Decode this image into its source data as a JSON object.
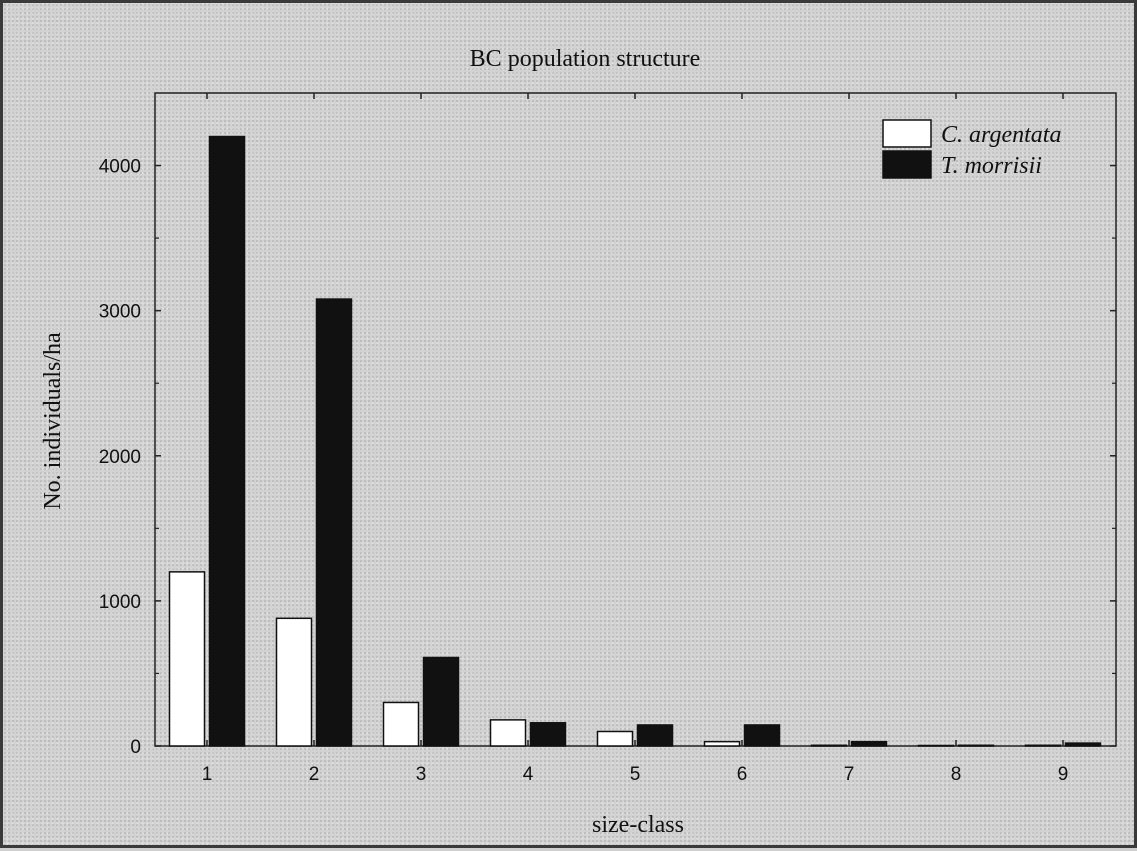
{
  "chart_data": {
    "type": "bar",
    "title": "BC population structure",
    "xlabel": "size-class",
    "ylabel": "No. individuals/ha",
    "categories": [
      "1",
      "2",
      "3",
      "4",
      "5",
      "6",
      "7",
      "8",
      "9"
    ],
    "series": [
      {
        "name": "C. argentata",
        "color": "#ffffff",
        "values": [
          1200,
          880,
          300,
          180,
          100,
          30,
          5,
          3,
          5
        ]
      },
      {
        "name": "T. morrisii",
        "color": "#111111",
        "values": [
          4200,
          3080,
          610,
          160,
          145,
          145,
          30,
          5,
          20
        ]
      }
    ],
    "ylim": [
      0,
      4500
    ],
    "yticks": [
      0,
      1000,
      2000,
      3000,
      4000
    ],
    "grid": false,
    "legend": "top-right"
  }
}
